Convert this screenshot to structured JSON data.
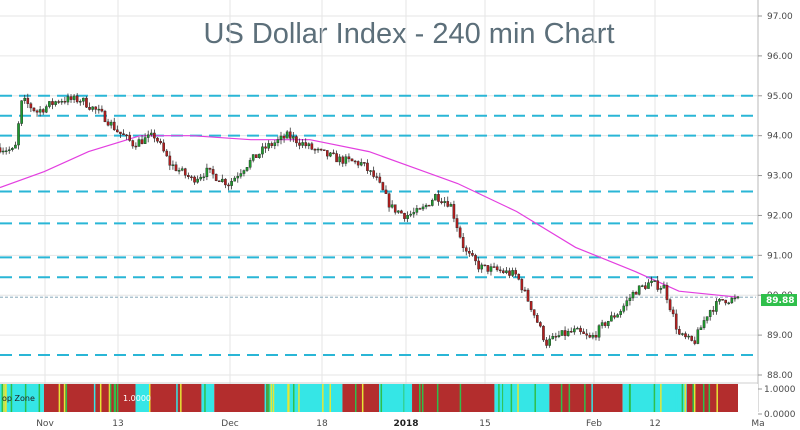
{
  "chart_data": {
    "type": "candlestick",
    "title": "US Dollar Index - 240 min Chart",
    "ylim": [
      88.0,
      97.0
    ],
    "y_ticks": [
      "97.00",
      "96.00",
      "95.00",
      "94.00",
      "93.00",
      "92.00",
      "91.00",
      "90.00",
      "89.00",
      "88.00"
    ],
    "last_price": "89.88",
    "x_labels": [
      {
        "label": "Nov",
        "bold": false
      },
      {
        "label": "13",
        "bold": false
      },
      {
        "label": "Dec",
        "bold": false
      },
      {
        "label": "18",
        "bold": false
      },
      {
        "label": "2018",
        "bold": true
      },
      {
        "label": "15",
        "bold": false
      },
      {
        "label": "Feb",
        "bold": false
      },
      {
        "label": "12",
        "bold": false
      },
      {
        "label": "Ma",
        "bold": false
      }
    ],
    "horizontal_levels": [
      95.0,
      94.5,
      94.0,
      92.6,
      91.8,
      90.95,
      90.45,
      89.95,
      88.5
    ],
    "price_path": [
      [
        0,
        93.7
      ],
      [
        0.02,
        93.6
      ],
      [
        0.03,
        94.9
      ],
      [
        0.05,
        94.6
      ],
      [
        0.08,
        94.9
      ],
      [
        0.11,
        94.9
      ],
      [
        0.14,
        94.5
      ],
      [
        0.16,
        94.1
      ],
      [
        0.18,
        93.8
      ],
      [
        0.21,
        94.0
      ],
      [
        0.23,
        93.3
      ],
      [
        0.26,
        92.9
      ],
      [
        0.28,
        93.1
      ],
      [
        0.31,
        92.8
      ],
      [
        0.33,
        93.2
      ],
      [
        0.36,
        93.7
      ],
      [
        0.39,
        94.0
      ],
      [
        0.41,
        93.8
      ],
      [
        0.43,
        93.6
      ],
      [
        0.46,
        93.4
      ],
      [
        0.49,
        93.3
      ],
      [
        0.51,
        92.9
      ],
      [
        0.53,
        92.2
      ],
      [
        0.55,
        92.0
      ],
      [
        0.57,
        92.1
      ],
      [
        0.59,
        92.5
      ],
      [
        0.61,
        92.3
      ],
      [
        0.63,
        91.1
      ],
      [
        0.65,
        90.7
      ],
      [
        0.68,
        90.6
      ],
      [
        0.7,
        90.5
      ],
      [
        0.72,
        89.7
      ],
      [
        0.74,
        88.8
      ],
      [
        0.76,
        89.0
      ],
      [
        0.78,
        89.1
      ],
      [
        0.8,
        88.9
      ],
      [
        0.82,
        89.3
      ],
      [
        0.84,
        89.6
      ],
      [
        0.86,
        90.1
      ],
      [
        0.88,
        90.3
      ],
      [
        0.9,
        90.2
      ],
      [
        0.92,
        89.0
      ],
      [
        0.94,
        88.8
      ],
      [
        0.96,
        89.6
      ],
      [
        0.98,
        89.9
      ],
      [
        1.0,
        89.88
      ]
    ],
    "moving_average": [
      [
        0,
        92.7
      ],
      [
        0.06,
        93.1
      ],
      [
        0.12,
        93.6
      ],
      [
        0.19,
        94.0
      ],
      [
        0.26,
        94.0
      ],
      [
        0.34,
        93.9
      ],
      [
        0.42,
        93.9
      ],
      [
        0.5,
        93.6
      ],
      [
        0.56,
        93.2
      ],
      [
        0.62,
        92.8
      ],
      [
        0.7,
        92.1
      ],
      [
        0.78,
        91.2
      ],
      [
        0.86,
        90.6
      ],
      [
        0.92,
        90.1
      ],
      [
        1.0,
        89.95
      ]
    ],
    "indicator": {
      "label": "op Zone",
      "value": "1.0000",
      "y_ticks": [
        "1.0000",
        "0.0000"
      ],
      "colors": {
        "red": "#b32d2d",
        "cyan": "#35e6e6",
        "yellow": "#e6e635",
        "green": "#2fbf4b"
      },
      "segments": [
        [
          "cyan",
          0.24
        ],
        [
          "red",
          0.5
        ],
        [
          "cyan",
          0.08
        ],
        [
          "red",
          0.28
        ],
        [
          "cyan",
          0.07
        ],
        [
          "red",
          0.3
        ],
        [
          "cyan",
          0.4
        ],
        [
          "red",
          0.2
        ],
        [
          "cyan",
          0.18
        ],
        [
          "red",
          0.45
        ],
        [
          "cyan",
          0.3
        ],
        [
          "red",
          0.4
        ],
        [
          "cyan",
          0.35
        ],
        [
          "red",
          0.28
        ]
      ]
    }
  }
}
